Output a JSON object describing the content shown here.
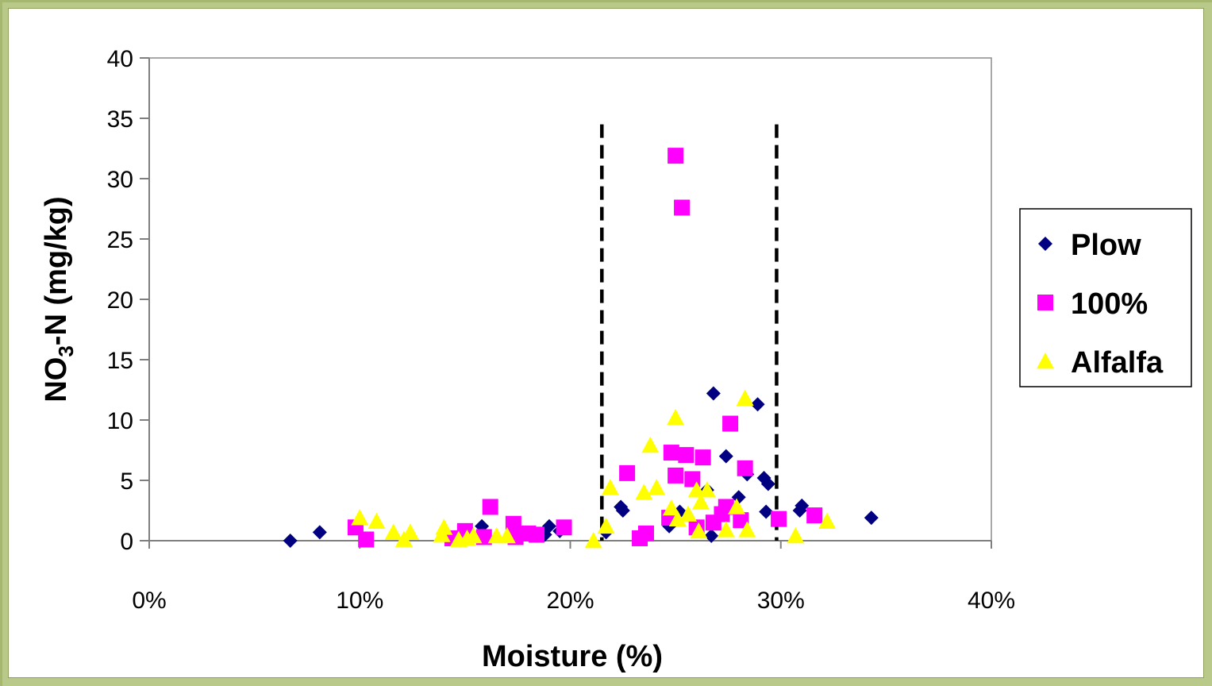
{
  "chart_data": {
    "type": "scatter",
    "xlabel": "Moisture (%)",
    "ylabel_main": "NO",
    "ylabel_sub": "3",
    "ylabel_rest": "-N (mg/kg)",
    "xlim": [
      0,
      40
    ],
    "ylim": [
      0,
      40
    ],
    "x_ticks": [
      0,
      10,
      20,
      30,
      40
    ],
    "x_tick_labels": [
      "0%",
      "10%",
      "20%",
      "30%",
      "40%"
    ],
    "y_ticks": [
      0,
      5,
      10,
      15,
      20,
      25,
      30,
      35,
      40
    ],
    "y_tick_labels": [
      "0",
      "5",
      "10",
      "15",
      "20",
      "25",
      "30",
      "35",
      "40"
    ],
    "grid": false,
    "legend_position": "right",
    "reference_lines": [
      {
        "x": 21.5,
        "y_top": 34.5,
        "style": "dashed"
      },
      {
        "x": 29.8,
        "y_top": 34.5,
        "style": "dashed"
      }
    ],
    "series": [
      {
        "name": "Plow",
        "marker": "diamond",
        "color": "#000080",
        "points": [
          [
            6.7,
            0.0
          ],
          [
            8.1,
            0.7
          ],
          [
            15.8,
            1.2
          ],
          [
            18.8,
            0.5
          ],
          [
            19.0,
            1.2
          ],
          [
            19.5,
            0.8
          ],
          [
            21.7,
            0.7
          ],
          [
            22.4,
            2.8
          ],
          [
            22.5,
            2.5
          ],
          [
            24.7,
            1.2
          ],
          [
            25.2,
            2.4
          ],
          [
            26.5,
            4.2
          ],
          [
            26.7,
            0.4
          ],
          [
            26.8,
            12.2
          ],
          [
            27.4,
            7.0
          ],
          [
            28.0,
            3.6
          ],
          [
            28.4,
            5.5
          ],
          [
            28.9,
            11.3
          ],
          [
            29.2,
            5.2
          ],
          [
            29.3,
            2.4
          ],
          [
            29.4,
            4.7
          ],
          [
            30.9,
            2.5
          ],
          [
            31.0,
            2.9
          ],
          [
            34.3,
            1.9
          ]
        ]
      },
      {
        "name": "100%",
        "marker": "square",
        "color": "#ff00ff",
        "points": [
          [
            9.8,
            1.1
          ],
          [
            10.3,
            0.1
          ],
          [
            14.4,
            0.2
          ],
          [
            15.0,
            0.8
          ],
          [
            15.9,
            0.3
          ],
          [
            16.2,
            2.8
          ],
          [
            17.3,
            1.4
          ],
          [
            17.4,
            0.3
          ],
          [
            18.0,
            0.6
          ],
          [
            18.4,
            0.5
          ],
          [
            19.7,
            1.1
          ],
          [
            22.7,
            5.6
          ],
          [
            23.3,
            0.2
          ],
          [
            23.6,
            0.6
          ],
          [
            24.7,
            1.9
          ],
          [
            24.8,
            7.3
          ],
          [
            25.0,
            5.4
          ],
          [
            25.0,
            31.9
          ],
          [
            25.3,
            27.6
          ],
          [
            25.5,
            7.1
          ],
          [
            25.8,
            5.1
          ],
          [
            26.0,
            1.1
          ],
          [
            26.3,
            6.9
          ],
          [
            26.8,
            1.5
          ],
          [
            27.2,
            2.2
          ],
          [
            27.4,
            2.8
          ],
          [
            27.6,
            9.7
          ],
          [
            28.1,
            1.7
          ],
          [
            28.3,
            6.0
          ],
          [
            29.9,
            1.8
          ],
          [
            31.6,
            2.1
          ]
        ]
      },
      {
        "name": "Alfalfa",
        "marker": "triangle",
        "color": "#ffff00",
        "points": [
          [
            10.0,
            1.9
          ],
          [
            10.8,
            1.6
          ],
          [
            11.6,
            0.7
          ],
          [
            12.1,
            0.1
          ],
          [
            12.4,
            0.7
          ],
          [
            13.9,
            0.5
          ],
          [
            14.0,
            1.1
          ],
          [
            14.7,
            0.1
          ],
          [
            15.1,
            0.2
          ],
          [
            15.4,
            0.4
          ],
          [
            16.5,
            0.4
          ],
          [
            17.0,
            0.4
          ],
          [
            21.1,
            0.0
          ],
          [
            21.7,
            1.2
          ],
          [
            21.9,
            4.4
          ],
          [
            23.5,
            4.0
          ],
          [
            23.8,
            7.9
          ],
          [
            24.1,
            4.4
          ],
          [
            24.8,
            2.7
          ],
          [
            25.0,
            10.2
          ],
          [
            25.1,
            1.8
          ],
          [
            25.6,
            2.2
          ],
          [
            26.0,
            4.2
          ],
          [
            26.1,
            0.8
          ],
          [
            26.2,
            3.2
          ],
          [
            26.5,
            4.2
          ],
          [
            27.4,
            0.9
          ],
          [
            27.9,
            2.8
          ],
          [
            28.3,
            11.8
          ],
          [
            28.4,
            0.9
          ],
          [
            30.7,
            0.4
          ],
          [
            32.2,
            1.6
          ]
        ]
      }
    ]
  }
}
